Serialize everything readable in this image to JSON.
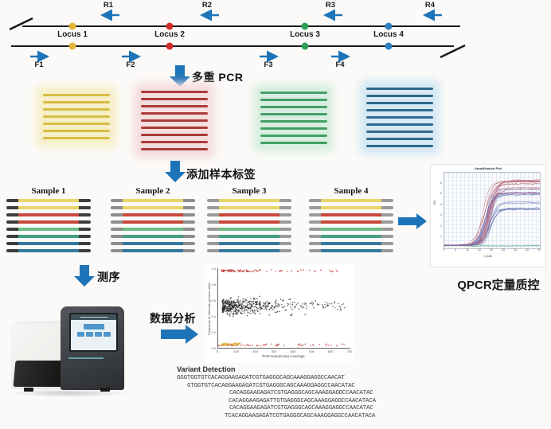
{
  "genome_map": {
    "loci": [
      {
        "label": "Locus 1",
        "color": "#e3b637"
      },
      {
        "label": "Locus 2",
        "color": "#cf2b2b"
      },
      {
        "label": "Locus 3",
        "color": "#2da156"
      },
      {
        "label": "Locus 4",
        "color": "#2d7fc0"
      }
    ],
    "reverse_primers": [
      "R1",
      "R2",
      "R3",
      "R4"
    ],
    "forward_primers": [
      "F1",
      "F2",
      "F3",
      "F4"
    ]
  },
  "steps": {
    "multiplex_pcr": "多重 PCR",
    "add_sample_tags": "添加样本标签",
    "sequencing": "测序",
    "data_analysis": "数据分析",
    "qpcr_qc": "QPCR定量质控"
  },
  "amplicon_stacks": [
    {
      "name": "locus-1-amplicons",
      "color": "#d6bd45",
      "glow": "#f7efc8",
      "count": 7
    },
    {
      "name": "locus-2-amplicons",
      "color": "#ac3a3a",
      "glow": "#f5dede",
      "count": 9
    },
    {
      "name": "locus-3-amplicons",
      "color": "#43a065",
      "glow": "#d9eee1",
      "count": 8
    },
    {
      "name": "locus-4-amplicons",
      "color": "#2d6a8f",
      "glow": "#d7e9f3",
      "count": 9
    }
  ],
  "samples": [
    {
      "label": "Sample 1",
      "cap_color": "#3d3d3d"
    },
    {
      "label": "Sample 2",
      "cap_color": "#8d8d8d"
    },
    {
      "label": "Sample 3",
      "cap_color": "#9a9a9a"
    },
    {
      "label": "Sample 4",
      "cap_color": "#9a9a9a"
    }
  ],
  "sample_line_colors": [
    "#e9d669",
    "#e9d669",
    "#c8473c",
    "#c8473c",
    "#6cbd85",
    "#43a07c",
    "#35789d",
    "#35789d"
  ],
  "variant_detection": {
    "title": "Variant Detection",
    "reads": [
      "GGGTGGTGTCACAGGAAGAGATCGTGAGGGCAGCAAAGGAGGCCAACAT",
      "GTGGTGTCACAGGAAGAGATCGTGAGGGCAGCAAAGGAGGCCAACATAC",
      "CACAGGAAGAGATCGTGAGGGCAGCAAAGGAGGCCAACATAC",
      "CACAGGAAGAGATTGTGAGGGCAGCAAAGGAGGCCAACATACA",
      "CACAGGAAGAGATCGTGAGGGCAGCAAAGGAGGCCAACATAC",
      "TCACAGGAAGAGATCGTGAGGGCAGCAAAGGAGGCCAACATACA"
    ]
  },
  "chart_data": [
    {
      "id": "qpcr_amplification",
      "type": "line",
      "title": "Amplification Plot",
      "xlabel": "Cycle",
      "ylabel": "Rn",
      "xlim": [
        0,
        40
      ],
      "ylim": [
        0,
        7
      ],
      "x_ticks": [
        0,
        5,
        10,
        15,
        20,
        25,
        30,
        35,
        40
      ],
      "y_ticks": [
        1,
        2,
        3,
        4,
        5,
        6
      ],
      "grid": true,
      "legend": "none",
      "curve_count": 26,
      "shape": "sigmoid amplification curves: flat baseline to ~cycle 14, exponential rise ~cycles 15-22, plateau after",
      "plateau_range_warm": [
        4.8,
        6.4
      ],
      "plateau_range_cool": [
        3.4,
        5.6
      ],
      "curve_colors_warm": [
        "#b23b4e",
        "#c86a80",
        "#d494a6",
        "#a04a62",
        "#c45b6e"
      ],
      "curve_colors_cool": [
        "#3b4da0",
        "#6b74bb",
        "#8b80c7",
        "#4a69b1",
        "#7e97cb"
      ],
      "baseline_color": "#3aa06a"
    },
    {
      "id": "variant_allele_frequency_scatter",
      "type": "scatter",
      "xlabel": "PnM sequencing coverage",
      "ylabel": "Frequency of alternate genome allele",
      "xlim": [
        0,
        700
      ],
      "ylim": [
        0,
        1
      ],
      "x_ticks": [
        0,
        100,
        200,
        300,
        400,
        500,
        600,
        700
      ],
      "y_ticks": [
        0,
        0.2,
        0.4,
        0.6,
        0.8,
        1
      ],
      "grid": false,
      "clusters": [
        {
          "name": "heterozygous-variants",
          "color": "#1a1a1a",
          "count": 430,
          "x_distribution": "exponential, densest below ~150 coverage",
          "y_center": 0.48,
          "y_sd": 0.14
        },
        {
          "name": "dispersed-tail",
          "color": "#1a1a1a",
          "count": 70,
          "y_center": 0.46,
          "y_sd": 0.07
        },
        {
          "name": "homozygous-alt-band",
          "color": "#c23434",
          "count": 95,
          "y_center": 0.98
        },
        {
          "name": "reference-band",
          "color": "#c23434",
          "count": 75,
          "y_center": 0.03
        },
        {
          "name": "low-coverage-flagged",
          "color": "#dfb43c",
          "count": 45,
          "y_center": 0.04
        }
      ]
    }
  ]
}
